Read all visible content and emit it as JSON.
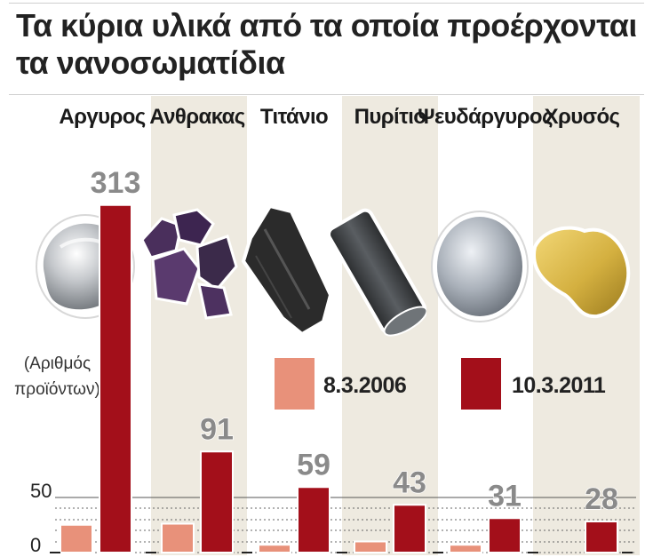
{
  "title": {
    "line1": "Τα κύρια υλικά από τα οποία προέρχονται",
    "line2": "τα νανοσωματίδια"
  },
  "chart_data": {
    "type": "bar",
    "categories": [
      "Αργυρος",
      "Ανθρακας",
      "Τιτάνιο",
      "Πυρίτιο",
      "Ψευδάργυρος",
      "Χρυσός"
    ],
    "series": [
      {
        "name": "8.3.2006",
        "color": "#e8917a",
        "values": [
          25,
          26,
          7,
          10,
          7,
          0
        ]
      },
      {
        "name": "10.3.2011",
        "color": "#a30f1a",
        "values": [
          313,
          91,
          59,
          43,
          31,
          28
        ]
      }
    ],
    "value_labels": [
      "313",
      "91",
      "59",
      "43",
      "31",
      "28"
    ],
    "ylabel": "(Αριθμός προϊόντων)",
    "ylabel_lines": [
      "(Αριθμός",
      "προϊόντων)"
    ],
    "yticks": [
      "0",
      "50"
    ],
    "legend_placement": "center",
    "grid": "dotted horizontal"
  },
  "materials": [
    {
      "name": "silver-nugget-icon",
      "color": "#c9ccd0"
    },
    {
      "name": "coal-pieces-icon",
      "color": "#3b2a4a"
    },
    {
      "name": "titanium-chunk-icon",
      "color": "#2b2b2b"
    },
    {
      "name": "silicon-rod-icon",
      "color": "#3a3d40"
    },
    {
      "name": "zinc-ball-icon",
      "color": "#b8bec6"
    },
    {
      "name": "gold-nugget-icon",
      "color": "#d4b040"
    }
  ]
}
